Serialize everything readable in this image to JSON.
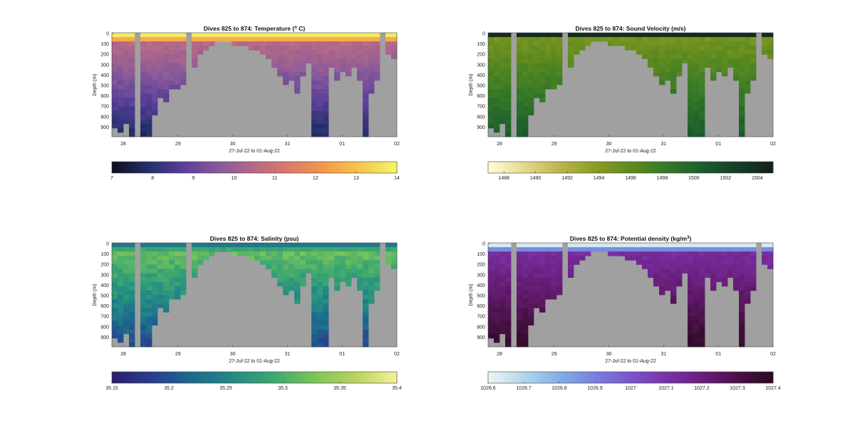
{
  "chart_data": [
    {
      "type": "heatmap",
      "id": "temperature",
      "title": "Dives 825 to 874: Temperature (° C)",
      "title_main": "Dives 825 to 874: Temperature (",
      "title_sup": "o",
      "title_end": " C)",
      "ylabel": "Depth (m)",
      "xlabel": "27-Jul-22 to 01-Aug-22",
      "xtick_labels": [
        "28",
        "29",
        "30",
        "31",
        "01",
        "02"
      ],
      "ytick_labels": [
        "0",
        "100",
        "200",
        "300",
        "400",
        "500",
        "600",
        "700",
        "800",
        "900"
      ],
      "ylim": [
        0,
        1000
      ],
      "colorbar": {
        "ticks": [
          "7",
          "8",
          "9",
          "10",
          "11",
          "12",
          "13",
          "14"
        ],
        "range": [
          7,
          14
        ],
        "colormap": [
          "#0d0f20",
          "#23306b",
          "#5a3f99",
          "#8a5a9a",
          "#b56a86",
          "#dc7a68",
          "#f49a4a",
          "#f6c64d",
          "#f4f567"
        ]
      }
    },
    {
      "type": "heatmap",
      "id": "sound_velocity",
      "title": "Dives 825 to 874: Sound Velocity (m/s)",
      "title_main": "Dives 825 to 874: Sound Velocity (m/s)",
      "title_sup": "",
      "title_end": "",
      "ylabel": "Depth (m)",
      "xlabel": "27-Jul-22 to 01-Aug-22",
      "xtick_labels": [
        "28",
        "29",
        "30",
        "31",
        "01",
        "02"
      ],
      "ytick_labels": [
        "0",
        "100",
        "200",
        "300",
        "400",
        "500",
        "600",
        "700",
        "800",
        "900"
      ],
      "ylim": [
        0,
        1000
      ],
      "colorbar": {
        "ticks": [
          "1488",
          "1490",
          "1492",
          "1494",
          "1496",
          "1498",
          "1500",
          "1502",
          "1504"
        ],
        "range": [
          1487,
          1505
        ],
        "colormap": [
          "#fefcd9",
          "#e4d98c",
          "#bcb44b",
          "#8b9d24",
          "#5f8b1f",
          "#357927",
          "#1c5e2e",
          "#173f26",
          "#13201a"
        ]
      }
    },
    {
      "type": "heatmap",
      "id": "salinity",
      "title": "Dives 825 to 874: Salinity (psu)",
      "title_main": "Dives 825 to 874: Salinity (psu)",
      "title_sup": "",
      "title_end": "",
      "ylabel": "Depth (m)",
      "xlabel": "27-Jul-22 to 01-Aug-22",
      "xtick_labels": [
        "28",
        "29",
        "30",
        "31",
        "01",
        "02"
      ],
      "ytick_labels": [
        "0",
        "100",
        "200",
        "300",
        "400",
        "500",
        "600",
        "700",
        "800",
        "900"
      ],
      "ylim": [
        0,
        1000
      ],
      "colorbar": {
        "ticks": [
          "35.15",
          "35.2",
          "35.25",
          "35.3",
          "35.35",
          "35.4"
        ],
        "range": [
          35.15,
          35.4
        ],
        "colormap": [
          "#2a1e6c",
          "#28408f",
          "#1d6a8d",
          "#238c84",
          "#3fa96f",
          "#7cc45a",
          "#b8d35f",
          "#f3ef9a"
        ]
      }
    },
    {
      "type": "heatmap",
      "id": "potential_density",
      "title": "Dives 825 to 874: Potential density (kg/m3)",
      "title_main": "Dives 825 to 874: Potential density (kg/m",
      "title_sup": "3",
      "title_end": ")",
      "ylabel": "Depth (m)",
      "xlabel": "27-Jul-22 to 01-Aug-22",
      "xtick_labels": [
        "28",
        "29",
        "30",
        "31",
        "01",
        "02"
      ],
      "ytick_labels": [
        "0",
        "100",
        "200",
        "300",
        "400",
        "500",
        "600",
        "700",
        "800",
        "900"
      ],
      "ylim": [
        0,
        1000
      ],
      "colorbar": {
        "ticks": [
          "1026.6",
          "1026.7",
          "1026.8",
          "1026.9",
          "1027",
          "1027.1",
          "1027.2",
          "1027.3",
          "1027.4"
        ],
        "range": [
          1026.6,
          1027.4
        ],
        "colormap": [
          "#eaf4f6",
          "#b2d6ea",
          "#82aee4",
          "#7a80de",
          "#7b55cc",
          "#7a32a8",
          "#6a1f7c",
          "#4a1248",
          "#2a0a22"
        ]
      }
    }
  ]
}
